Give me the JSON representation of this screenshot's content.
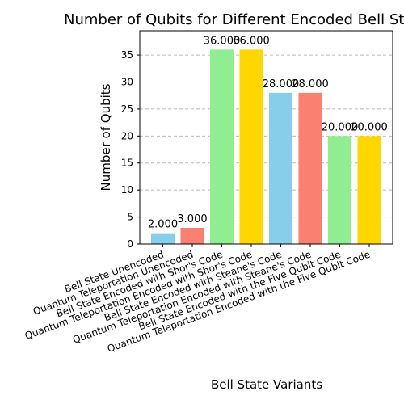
{
  "chart_data": {
    "type": "bar",
    "title": "Number of Qubits for Different Encoded Bell States",
    "xlabel": "Bell State Variants",
    "ylabel": "Number of Qubits",
    "categories": [
      "Bell State Unencoded",
      "Quantum Teleportation Unencoded",
      "Bell State Encoded with Shor's Code",
      "Quantum Teleportation Encoded with Shor's Code",
      "Bell State Encoded with Steane's Code",
      "Quantum Teleportation Encoded with Steane's Code",
      "Bell State Encoded with the Five Qubit Code",
      "Quantum Teleportation Encoded with the Five Qubit Code"
    ],
    "values": [
      2,
      3,
      36,
      36,
      28,
      28,
      20,
      20
    ],
    "value_labels": [
      "2.000",
      "3.000",
      "36.000",
      "36.000",
      "28.000",
      "28.000",
      "20.000",
      "20.000"
    ],
    "bar_colors": [
      "#87CEEB",
      "#FA8072",
      "#90EE90",
      "#FFD700",
      "#87CEEB",
      "#FA8072",
      "#90EE90",
      "#FFD700"
    ],
    "ylim": [
      0,
      39.5
    ],
    "yticks": [
      0,
      5,
      10,
      15,
      20,
      25,
      30,
      35
    ],
    "grid": "y-dashed"
  }
}
